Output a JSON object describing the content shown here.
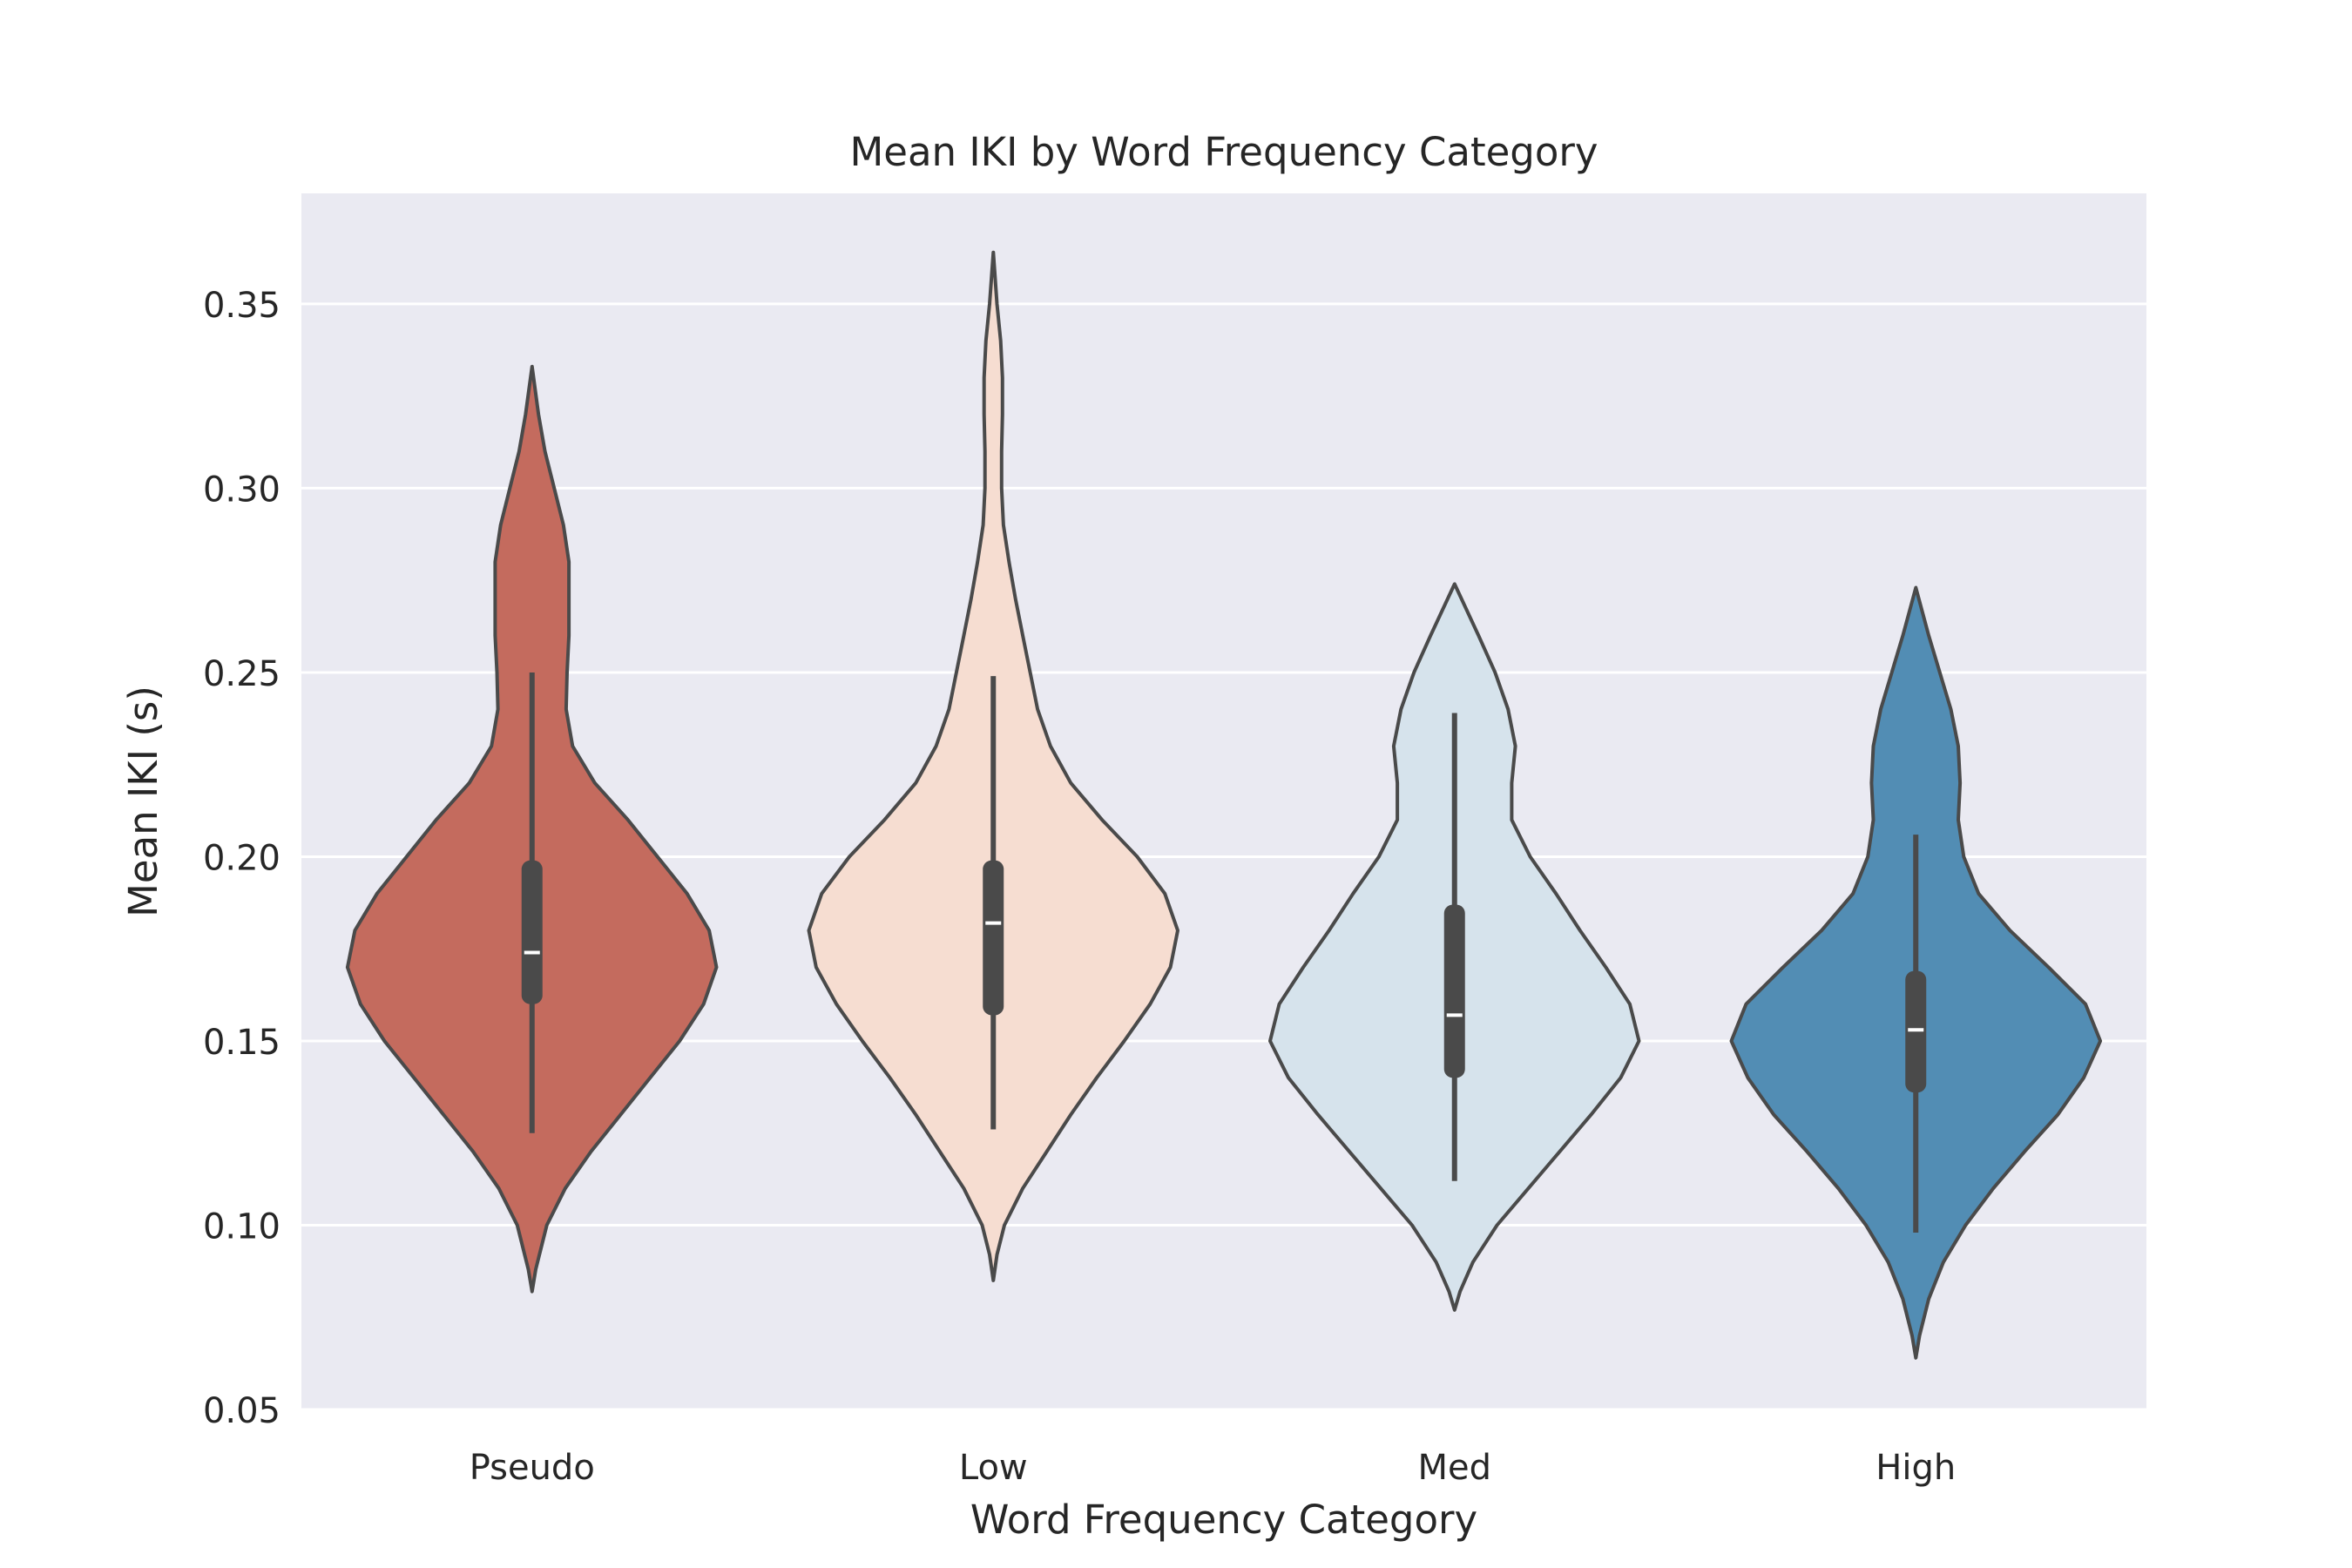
{
  "chart_data": {
    "type": "violin",
    "title": "Mean IKI by Word Frequency Category",
    "xlabel": "Word Frequency Category",
    "ylabel": "Mean IKI (s)",
    "ylim": [
      0.05,
      0.38
    ],
    "yticks": [
      "0.05",
      "0.10",
      "0.15",
      "0.20",
      "0.25",
      "0.30",
      "0.35"
    ],
    "grid": true,
    "categories": [
      "Pseudo",
      "Low",
      "Med",
      "High"
    ],
    "colors": {
      "Pseudo": "#c46b5e",
      "Low": "#f6ddd1",
      "Med": "#d6e3ec",
      "High": "#528db4",
      "background": "#eaeaf2",
      "outline": "#4a4a4a"
    },
    "series": [
      {
        "name": "Pseudo",
        "min": 0.125,
        "q1": 0.16,
        "median": 0.174,
        "q3": 0.199,
        "max": 0.25,
        "kde_range": [
          0.082,
          0.333
        ],
        "kde_profile": [
          [
            0.082,
            0.0
          ],
          [
            0.088,
            0.02
          ],
          [
            0.1,
            0.08
          ],
          [
            0.11,
            0.18
          ],
          [
            0.12,
            0.32
          ],
          [
            0.13,
            0.48
          ],
          [
            0.14,
            0.64
          ],
          [
            0.15,
            0.8
          ],
          [
            0.16,
            0.93
          ],
          [
            0.17,
            1.0
          ],
          [
            0.18,
            0.96
          ],
          [
            0.19,
            0.84
          ],
          [
            0.2,
            0.68
          ],
          [
            0.21,
            0.52
          ],
          [
            0.22,
            0.34
          ],
          [
            0.23,
            0.22
          ],
          [
            0.24,
            0.185
          ],
          [
            0.25,
            0.19
          ],
          [
            0.26,
            0.2
          ],
          [
            0.27,
            0.2
          ],
          [
            0.28,
            0.2
          ],
          [
            0.29,
            0.17
          ],
          [
            0.3,
            0.12
          ],
          [
            0.31,
            0.07
          ],
          [
            0.32,
            0.035
          ],
          [
            0.333,
            0.0
          ]
        ]
      },
      {
        "name": "Low",
        "min": 0.126,
        "q1": 0.157,
        "median": 0.182,
        "q3": 0.199,
        "max": 0.249,
        "kde_range": [
          0.085,
          0.364
        ],
        "kde_profile": [
          [
            0.085,
            0.0
          ],
          [
            0.092,
            0.02
          ],
          [
            0.1,
            0.06
          ],
          [
            0.11,
            0.16
          ],
          [
            0.12,
            0.29
          ],
          [
            0.13,
            0.42
          ],
          [
            0.14,
            0.56
          ],
          [
            0.15,
            0.71
          ],
          [
            0.16,
            0.85
          ],
          [
            0.17,
            0.96
          ],
          [
            0.18,
            1.0
          ],
          [
            0.19,
            0.93
          ],
          [
            0.2,
            0.78
          ],
          [
            0.21,
            0.59
          ],
          [
            0.22,
            0.42
          ],
          [
            0.23,
            0.31
          ],
          [
            0.24,
            0.24
          ],
          [
            0.25,
            0.2
          ],
          [
            0.26,
            0.16
          ],
          [
            0.27,
            0.12
          ],
          [
            0.28,
            0.085
          ],
          [
            0.29,
            0.055
          ],
          [
            0.3,
            0.045
          ],
          [
            0.31,
            0.045
          ],
          [
            0.32,
            0.05
          ],
          [
            0.33,
            0.05
          ],
          [
            0.34,
            0.04
          ],
          [
            0.35,
            0.02
          ],
          [
            0.364,
            0.0
          ]
        ]
      },
      {
        "name": "Med",
        "min": 0.112,
        "q1": 0.14,
        "median": 0.157,
        "q3": 0.187,
        "max": 0.239,
        "kde_range": [
          0.077,
          0.274
        ],
        "kde_profile": [
          [
            0.077,
            0.0
          ],
          [
            0.082,
            0.03
          ],
          [
            0.09,
            0.1
          ],
          [
            0.1,
            0.23
          ],
          [
            0.11,
            0.4
          ],
          [
            0.12,
            0.57
          ],
          [
            0.13,
            0.74
          ],
          [
            0.14,
            0.9
          ],
          [
            0.15,
            1.0
          ],
          [
            0.16,
            0.95
          ],
          [
            0.17,
            0.82
          ],
          [
            0.18,
            0.68
          ],
          [
            0.19,
            0.55
          ],
          [
            0.2,
            0.41
          ],
          [
            0.21,
            0.31
          ],
          [
            0.22,
            0.31
          ],
          [
            0.23,
            0.33
          ],
          [
            0.24,
            0.29
          ],
          [
            0.25,
            0.22
          ],
          [
            0.26,
            0.13
          ],
          [
            0.274,
            0.0
          ]
        ]
      },
      {
        "name": "High",
        "min": 0.098,
        "q1": 0.136,
        "median": 0.153,
        "q3": 0.169,
        "max": 0.206,
        "kde_range": [
          0.064,
          0.273
        ],
        "kde_profile": [
          [
            0.064,
            0.0
          ],
          [
            0.07,
            0.02
          ],
          [
            0.08,
            0.07
          ],
          [
            0.09,
            0.15
          ],
          [
            0.1,
            0.27
          ],
          [
            0.11,
            0.42
          ],
          [
            0.12,
            0.59
          ],
          [
            0.13,
            0.77
          ],
          [
            0.14,
            0.91
          ],
          [
            0.15,
            1.0
          ],
          [
            0.16,
            0.92
          ],
          [
            0.17,
            0.72
          ],
          [
            0.18,
            0.51
          ],
          [
            0.19,
            0.34
          ],
          [
            0.2,
            0.26
          ],
          [
            0.21,
            0.23
          ],
          [
            0.22,
            0.24
          ],
          [
            0.23,
            0.23
          ],
          [
            0.24,
            0.19
          ],
          [
            0.25,
            0.13
          ],
          [
            0.26,
            0.07
          ],
          [
            0.273,
            0.0
          ]
        ]
      }
    ]
  }
}
